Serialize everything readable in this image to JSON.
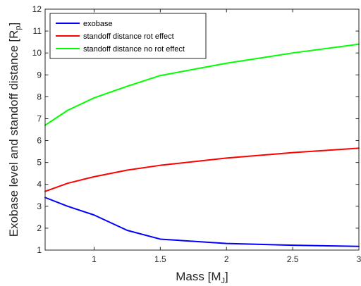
{
  "chart_data": {
    "type": "line",
    "x": [
      0.63,
      0.8,
      1.0,
      1.25,
      1.5,
      2.0,
      2.5,
      3.0
    ],
    "series": [
      {
        "name": "exobase",
        "color": "#0000ff",
        "values": [
          3.4,
          3.0,
          2.6,
          1.9,
          1.5,
          1.3,
          1.22,
          1.17
        ]
      },
      {
        "name": "standoff distance rot effect",
        "color": "#ff0000",
        "values": [
          3.68,
          4.05,
          4.35,
          4.65,
          4.87,
          5.2,
          5.45,
          5.65
        ]
      },
      {
        "name": "standoff distance no rot effect",
        "color": "#00ff00",
        "values": [
          6.7,
          7.38,
          7.95,
          8.48,
          8.97,
          9.53,
          10.0,
          10.4
        ]
      }
    ],
    "xlabel_main": "Mass [M",
    "xlabel_sub": "J",
    "xlabel_end": "]",
    "ylabel_main": "Exobase level and standoff distance [R",
    "ylabel_sub": "p",
    "ylabel_end": "]",
    "xlim": [
      0.63,
      3.0
    ],
    "ylim": [
      1,
      12
    ],
    "x_ticks": [
      1,
      1.5,
      2,
      2.5,
      3
    ],
    "x_tick_labels": [
      "1",
      "1.5",
      "2",
      "2.5",
      "3"
    ],
    "y_ticks": [
      1,
      2,
      3,
      4,
      5,
      6,
      7,
      8,
      9,
      10,
      11,
      12
    ],
    "y_tick_labels": [
      "1",
      "2",
      "3",
      "4",
      "5",
      "6",
      "7",
      "8",
      "9",
      "10",
      "11",
      "12"
    ],
    "grid": false,
    "legend_position": "top-left",
    "box": true
  }
}
